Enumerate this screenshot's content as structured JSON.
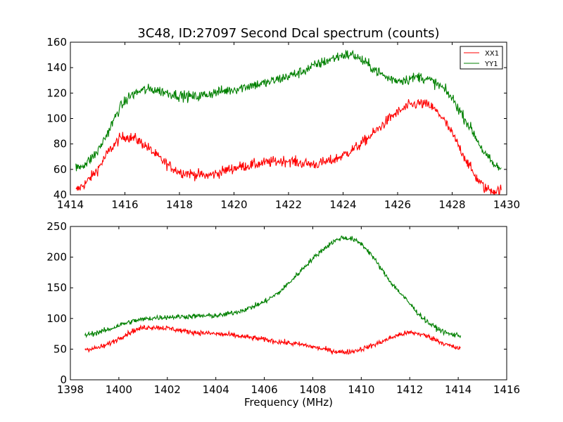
{
  "figure": {
    "title": "3C48, ID:27097 Second Dcal spectrum (counts)"
  },
  "chart_data": [
    {
      "type": "line",
      "title": "3C48, ID:27097 Second Dcal spectrum (counts)",
      "xlabel": "",
      "ylabel": "",
      "xlim": [
        1414,
        1430
      ],
      "ylim": [
        40,
        160
      ],
      "xticks": [
        "1414",
        "1416",
        "1418",
        "1420",
        "1422",
        "1424",
        "1426",
        "1428",
        "1430"
      ],
      "yticks": [
        "40",
        "60",
        "80",
        "100",
        "120",
        "140",
        "160"
      ],
      "grid": false,
      "legend": {
        "placement": "top-right",
        "entries": [
          "XX1",
          "YY1"
        ]
      },
      "noise": 3,
      "x_range": [
        1414.2,
        1429.8
      ],
      "series": [
        {
          "name": "XX1",
          "color": "#ff0000",
          "points": [
            [
              1414.2,
              43
            ],
            [
              1414.6,
              50
            ],
            [
              1415.0,
              60
            ],
            [
              1415.4,
              74
            ],
            [
              1415.8,
              84
            ],
            [
              1416.0,
              86
            ],
            [
              1416.4,
              84
            ],
            [
              1416.8,
              78
            ],
            [
              1417.2,
              70
            ],
            [
              1417.6,
              63
            ],
            [
              1418.0,
              58
            ],
            [
              1418.6,
              56
            ],
            [
              1419.0,
              55
            ],
            [
              1419.4,
              57
            ],
            [
              1419.8,
              60
            ],
            [
              1420.2,
              62
            ],
            [
              1420.8,
              64
            ],
            [
              1421.4,
              66
            ],
            [
              1422.0,
              67
            ],
            [
              1422.4,
              65
            ],
            [
              1423.0,
              64
            ],
            [
              1423.6,
              67
            ],
            [
              1424.0,
              71
            ],
            [
              1424.6,
              79
            ],
            [
              1425.2,
              90
            ],
            [
              1425.8,
              102
            ],
            [
              1426.4,
              110
            ],
            [
              1426.8,
              112
            ],
            [
              1427.2,
              110
            ],
            [
              1427.6,
              102
            ],
            [
              1428.0,
              88
            ],
            [
              1428.4,
              72
            ],
            [
              1428.8,
              56
            ],
            [
              1429.2,
              45
            ],
            [
              1429.6,
              43
            ],
            [
              1429.8,
              44
            ]
          ]
        },
        {
          "name": "YY1",
          "color": "#008000",
          "points": [
            [
              1414.2,
              61
            ],
            [
              1414.6,
              65
            ],
            [
              1415.0,
              74
            ],
            [
              1415.4,
              90
            ],
            [
              1415.8,
              108
            ],
            [
              1416.2,
              118
            ],
            [
              1416.6,
              122
            ],
            [
              1417.0,
              123
            ],
            [
              1417.4,
              121
            ],
            [
              1418.0,
              118
            ],
            [
              1418.6,
              117
            ],
            [
              1419.2,
              120
            ],
            [
              1420.0,
              123
            ],
            [
              1420.6,
              126
            ],
            [
              1421.2,
              128
            ],
            [
              1421.8,
              132
            ],
            [
              1422.4,
              136
            ],
            [
              1423.0,
              142
            ],
            [
              1423.6,
              147
            ],
            [
              1424.0,
              150
            ],
            [
              1424.4,
              150
            ],
            [
              1424.8,
              144
            ],
            [
              1425.2,
              138
            ],
            [
              1425.6,
              132
            ],
            [
              1426.0,
              130
            ],
            [
              1426.4,
              131
            ],
            [
              1426.8,
              133
            ],
            [
              1427.2,
              130
            ],
            [
              1427.6,
              125
            ],
            [
              1428.0,
              116
            ],
            [
              1428.4,
              102
            ],
            [
              1428.8,
              88
            ],
            [
              1429.2,
              72
            ],
            [
              1429.6,
              62
            ],
            [
              1429.8,
              61
            ]
          ]
        }
      ]
    },
    {
      "type": "line",
      "title": "",
      "xlabel": "Frequency (MHz)",
      "ylabel": "",
      "xlim": [
        1398,
        1416
      ],
      "ylim": [
        0,
        250
      ],
      "xticks": [
        "1398",
        "1400",
        "1402",
        "1404",
        "1406",
        "1408",
        "1410",
        "1412",
        "1414",
        "1416"
      ],
      "yticks": [
        "0",
        "50",
        "100",
        "150",
        "200",
        "250"
      ],
      "grid": false,
      "noise": 3,
      "x_range": [
        1398.6,
        1414.1
      ],
      "series": [
        {
          "name": "XX1",
          "color": "#ff0000",
          "points": [
            [
              1398.6,
              50
            ],
            [
              1399.0,
              51
            ],
            [
              1399.4,
              55
            ],
            [
              1399.8,
              63
            ],
            [
              1400.2,
              72
            ],
            [
              1400.6,
              80
            ],
            [
              1401.0,
              85
            ],
            [
              1401.4,
              86
            ],
            [
              1401.8,
              85
            ],
            [
              1402.2,
              83
            ],
            [
              1402.6,
              80
            ],
            [
              1403.2,
              77
            ],
            [
              1404.0,
              75
            ],
            [
              1404.6,
              73
            ],
            [
              1405.2,
              70
            ],
            [
              1405.8,
              67
            ],
            [
              1406.4,
              63
            ],
            [
              1407.0,
              60
            ],
            [
              1407.6,
              57
            ],
            [
              1408.2,
              52
            ],
            [
              1408.8,
              47
            ],
            [
              1409.2,
              45
            ],
            [
              1409.6,
              46
            ],
            [
              1410.0,
              50
            ],
            [
              1410.6,
              58
            ],
            [
              1411.2,
              68
            ],
            [
              1411.6,
              74
            ],
            [
              1412.0,
              77
            ],
            [
              1412.4,
              75
            ],
            [
              1412.8,
              70
            ],
            [
              1413.2,
              63
            ],
            [
              1413.6,
              56
            ],
            [
              1414.1,
              50
            ]
          ]
        },
        {
          "name": "YY1",
          "color": "#008000",
          "points": [
            [
              1398.6,
              73
            ],
            [
              1399.0,
              76
            ],
            [
              1399.6,
              82
            ],
            [
              1400.0,
              89
            ],
            [
              1400.6,
              96
            ],
            [
              1401.2,
              100
            ],
            [
              1401.8,
              102
            ],
            [
              1402.6,
              103
            ],
            [
              1403.4,
              104
            ],
            [
              1404.2,
              105
            ],
            [
              1404.8,
              110
            ],
            [
              1405.4,
              117
            ],
            [
              1406.0,
              127
            ],
            [
              1406.6,
              142
            ],
            [
              1407.2,
              165
            ],
            [
              1407.8,
              190
            ],
            [
              1408.4,
              212
            ],
            [
              1408.8,
              224
            ],
            [
              1409.2,
              232
            ],
            [
              1409.6,
              230
            ],
            [
              1410.0,
              222
            ],
            [
              1410.4,
              205
            ],
            [
              1410.8,
              182
            ],
            [
              1411.2,
              160
            ],
            [
              1411.6,
              142
            ],
            [
              1412.0,
              124
            ],
            [
              1412.4,
              106
            ],
            [
              1412.8,
              92
            ],
            [
              1413.2,
              82
            ],
            [
              1413.6,
              75
            ],
            [
              1414.1,
              72
            ]
          ]
        }
      ]
    }
  ]
}
